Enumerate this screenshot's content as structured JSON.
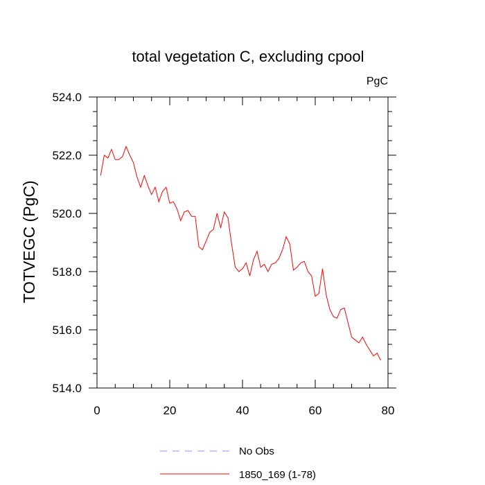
{
  "chart_data": {
    "type": "line",
    "title": "total vegetation C, excluding cpool",
    "units_label": "PgC",
    "ylabel": "TOTVEGC  (PgC)",
    "xlabel": "",
    "xlim": [
      0,
      80
    ],
    "ylim": [
      514,
      524
    ],
    "x_ticks": [
      0,
      20,
      40,
      60,
      80
    ],
    "x_tick_labels": [
      "0",
      "20",
      "40",
      "60",
      "80"
    ],
    "y_ticks": [
      514,
      516,
      518,
      520,
      522,
      524
    ],
    "y_tick_labels": [
      "514.0",
      "516.0",
      "518.0",
      "520.0",
      "522.0",
      "524.0"
    ],
    "series": [
      {
        "name": "1850_169 (1-78)",
        "color": "#ff0000",
        "style": "solid",
        "x": [
          1,
          2,
          3,
          4,
          5,
          6,
          7,
          8,
          9,
          10,
          11,
          12,
          13,
          14,
          15,
          16,
          17,
          18,
          19,
          20,
          21,
          22,
          23,
          24,
          25,
          26,
          27,
          28,
          29,
          30,
          31,
          32,
          33,
          34,
          35,
          36,
          37,
          38,
          39,
          40,
          41,
          42,
          43,
          44,
          45,
          46,
          47,
          48,
          49,
          50,
          51,
          52,
          53,
          54,
          55,
          56,
          57,
          58,
          59,
          60,
          61,
          62,
          63,
          64,
          65,
          66,
          67,
          68,
          69,
          70,
          71,
          72,
          73,
          74,
          75,
          76,
          77,
          78
        ],
        "values": [
          521.3,
          522.0,
          521.9,
          522.2,
          521.85,
          521.85,
          521.95,
          522.3,
          522.0,
          521.75,
          521.25,
          520.9,
          521.3,
          520.95,
          520.65,
          520.9,
          520.4,
          520.75,
          520.9,
          520.35,
          520.4,
          520.15,
          519.75,
          520.05,
          520.1,
          519.9,
          519.9,
          518.85,
          518.75,
          519.05,
          519.35,
          519.45,
          520.0,
          519.5,
          520.05,
          519.85,
          518.95,
          518.15,
          518.0,
          518.1,
          518.3,
          517.85,
          518.4,
          518.7,
          518.15,
          518.25,
          518.0,
          518.25,
          518.3,
          518.45,
          518.75,
          519.2,
          518.95,
          518.05,
          518.15,
          518.3,
          518.35,
          518.0,
          517.85,
          517.15,
          517.25,
          518.1,
          517.2,
          516.7,
          516.45,
          516.4,
          516.7,
          516.75,
          516.25,
          515.75,
          515.65,
          515.55,
          515.75,
          515.5,
          515.3,
          515.1,
          515.2,
          514.95
        ]
      },
      {
        "name": "No Obs",
        "color": "#8f8fff",
        "style": "dashed",
        "x": [],
        "values": []
      }
    ],
    "legend": {
      "position": "bottom-center",
      "entries": [
        "No Obs",
        "1850_169 (1-78)"
      ]
    },
    "grid": false
  }
}
